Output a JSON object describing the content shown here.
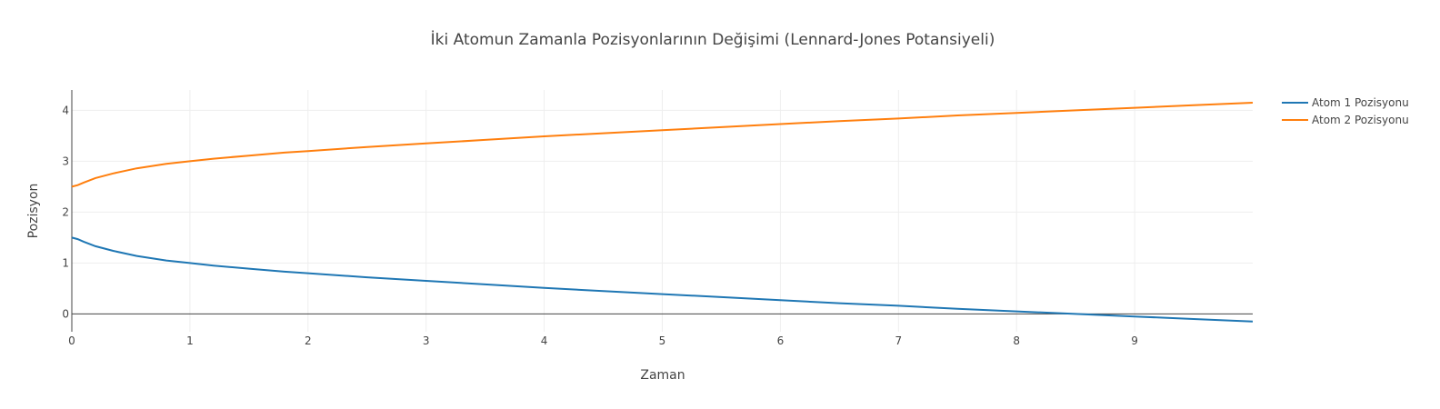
{
  "chart_data": {
    "type": "line",
    "title": "İki Atomun Zamanla Pozisyonlarının Değişimi (Lennard-Jones Potansiyeli)",
    "xlabel": "Zaman",
    "ylabel": "Pozisyon",
    "xlim": [
      0,
      10
    ],
    "ylim": [
      -0.35,
      4.4
    ],
    "x_ticks": [
      0,
      1,
      2,
      3,
      4,
      5,
      6,
      7,
      8,
      9
    ],
    "y_ticks": [
      0,
      1,
      2,
      3,
      4
    ],
    "grid": true,
    "legend_position": "top-right",
    "series": [
      {
        "name": "Atom 1 Pozisyonu",
        "color": "#1f77b4",
        "x": [
          0,
          0.05,
          0.1,
          0.2,
          0.35,
          0.55,
          0.8,
          1.0,
          1.2,
          1.5,
          1.8,
          2.0,
          2.5,
          3.0,
          3.5,
          4.0,
          4.5,
          5.0,
          5.5,
          6.0,
          6.5,
          7.0,
          7.5,
          8.0,
          8.5,
          9.0,
          9.5,
          10.0
        ],
        "y": [
          1.5,
          1.47,
          1.42,
          1.33,
          1.24,
          1.14,
          1.05,
          1.0,
          0.95,
          0.89,
          0.83,
          0.8,
          0.72,
          0.65,
          0.58,
          0.51,
          0.45,
          0.39,
          0.33,
          0.27,
          0.21,
          0.16,
          0.1,
          0.05,
          0.0,
          -0.05,
          -0.1,
          -0.15
        ]
      },
      {
        "name": "Atom 2 Pozisyonu",
        "color": "#ff7f0e",
        "x": [
          0,
          0.05,
          0.1,
          0.2,
          0.35,
          0.55,
          0.8,
          1.0,
          1.2,
          1.5,
          1.8,
          2.0,
          2.5,
          3.0,
          3.5,
          4.0,
          4.5,
          5.0,
          5.5,
          6.0,
          6.5,
          7.0,
          7.5,
          8.0,
          8.5,
          9.0,
          9.5,
          10.0
        ],
        "y": [
          2.5,
          2.53,
          2.58,
          2.67,
          2.76,
          2.86,
          2.95,
          3.0,
          3.05,
          3.11,
          3.17,
          3.2,
          3.28,
          3.35,
          3.42,
          3.49,
          3.55,
          3.61,
          3.67,
          3.73,
          3.79,
          3.84,
          3.9,
          3.95,
          4.0,
          4.05,
          4.1,
          4.15
        ]
      }
    ]
  }
}
